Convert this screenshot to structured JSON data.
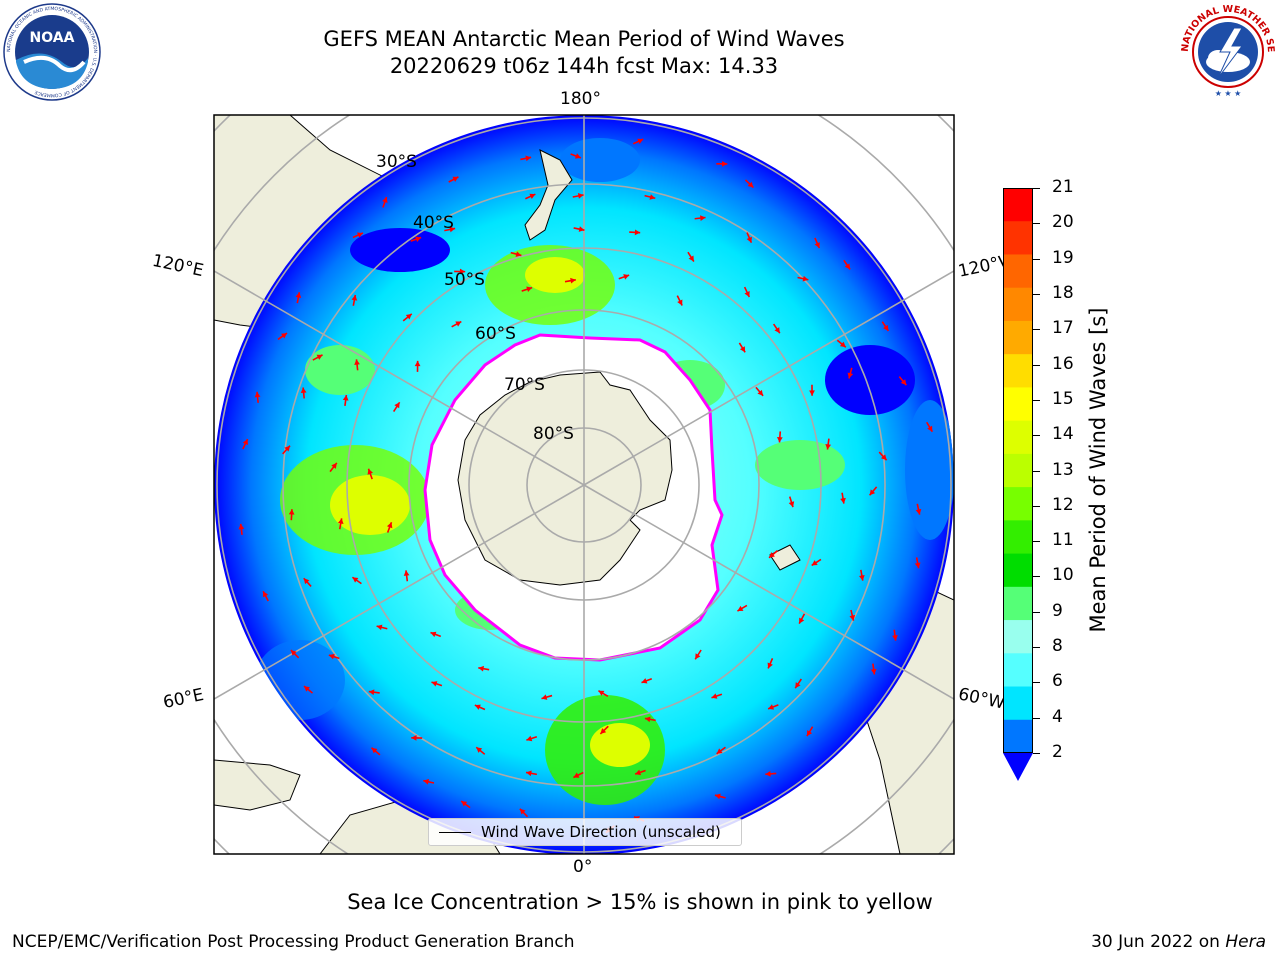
{
  "header": {
    "title_line1": "GEFS MEAN Antarctic Mean Period of Wind Waves",
    "title_line2": "20220629 t06z 144h fcst   Max: 14.33"
  },
  "logos": {
    "noaa": "NOAA",
    "noaa_ring": "NATIONAL OCEANIC AND ATMOSPHERIC ADMINISTRATION · U.S. DEPARTMENT OF COMMERCE",
    "nws_ring": "NATIONAL WEATHER SERVICE"
  },
  "map": {
    "lon_labels": {
      "top": "180°",
      "bottom": "0°",
      "left_upper": "120°E",
      "left_lower": "60°E",
      "right_upper": "120°W",
      "right_lower": "60°W"
    },
    "lat_labels": [
      "30°S",
      "40°S",
      "50°S",
      "60°S",
      "70°S",
      "80°S"
    ],
    "legend_label": "Wind Wave Direction (unscaled)",
    "colors": {
      "land": "#eeeedc",
      "ice_edge": "#ff00ff",
      "arrow": "#ff0000",
      "grid": "#aaaaaa"
    }
  },
  "colorbar": {
    "label": "Mean Period of Wind Waves [s]",
    "ticks": [
      "21",
      "20",
      "19",
      "18",
      "17",
      "16",
      "15",
      "14",
      "13",
      "12",
      "11",
      "10",
      "9",
      "8",
      "6",
      "4",
      "2"
    ],
    "colors": [
      "#ff0000",
      "#ff3300",
      "#ff6600",
      "#ff8800",
      "#ffaa00",
      "#ffdd00",
      "#ffff00",
      "#ddff00",
      "#bbff00",
      "#77ff00",
      "#33ee00",
      "#00dd00",
      "#55ff77",
      "#99ffee",
      "#55ffff",
      "#00e5ff",
      "#0077ff"
    ],
    "under_color": "#0000ff"
  },
  "footer": {
    "note": "Sea Ice Concentration > 15% is shown in pink to yellow",
    "credit": "NCEP/EMC/Verification Post Processing Product Generation Branch",
    "date": "30 Jun 2022 on",
    "machine": "Hera"
  }
}
